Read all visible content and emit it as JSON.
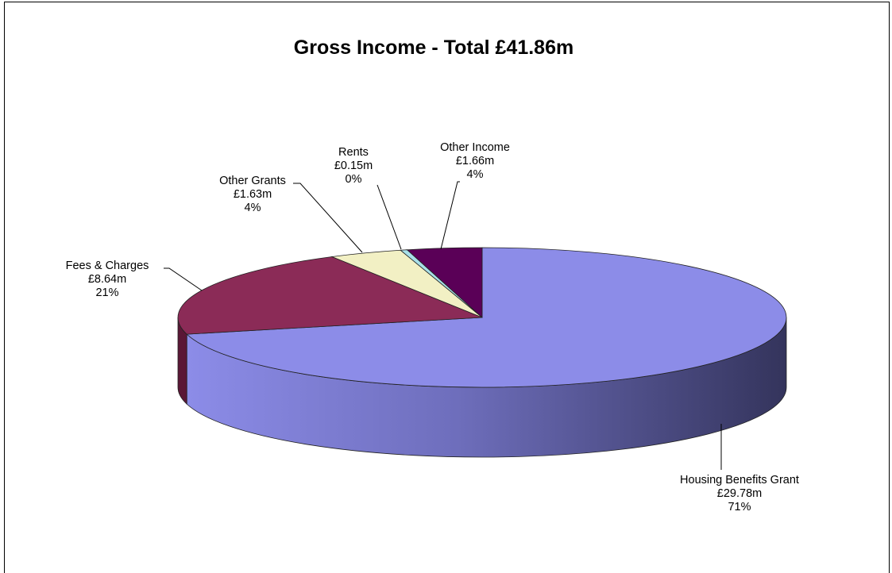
{
  "chart_data": {
    "type": "pie",
    "title": "Gross Income - Total £41.86m",
    "slices": [
      {
        "label": "Housing Benefits Grant",
        "amount": "£29.78m",
        "percent": "71%",
        "value": 29.78,
        "color": "#8c8ce8",
        "side_color": "#3a3a66"
      },
      {
        "label": "Fees & Charges",
        "amount": "£8.64m",
        "percent": "21%",
        "value": 8.64,
        "color": "#8b2b57",
        "side_color": "#5a1736"
      },
      {
        "label": "Other Grants",
        "amount": "£1.63m",
        "percent": "4%",
        "value": 1.63,
        "color": "#f2f0c4",
        "side_color": "#b8b68e"
      },
      {
        "label": "Rents",
        "amount": "£0.15m",
        "percent": "0%",
        "value": 0.15,
        "color": "#a8dfe8",
        "side_color": "#6fa6ae"
      },
      {
        "label": "Other Income",
        "amount": "£1.66m",
        "percent": "4%",
        "value": 1.66,
        "color": "#5a0057",
        "side_color": "#3a0038"
      }
    ],
    "legend": "none",
    "style": "3d-pie"
  }
}
